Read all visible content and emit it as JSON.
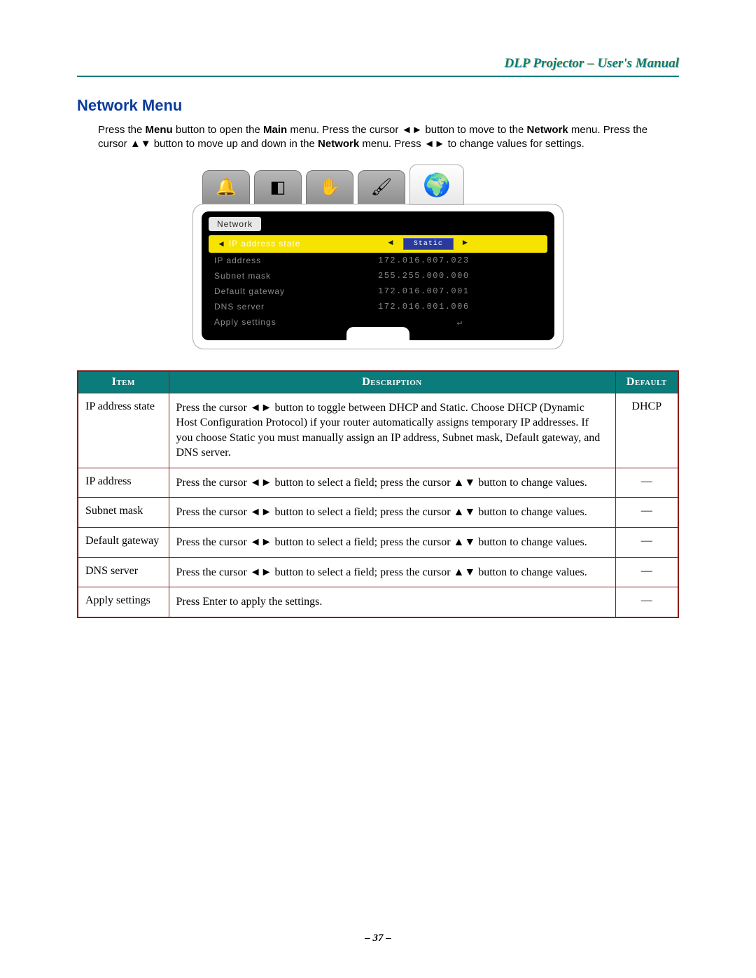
{
  "header": {
    "title": "DLP Projector – User's Manual"
  },
  "section": {
    "title": "Network Menu",
    "intro_p1a": "Press the ",
    "intro_menu": "Menu",
    "intro_p1b": " button to open the ",
    "intro_main": "Main",
    "intro_p1c": " menu. Press the cursor ◄► button to move to the ",
    "intro_network1": "Network",
    "intro_p2a": " menu. Press the cursor ▲▼ button to move up and down in the ",
    "intro_network2": "Network",
    "intro_p2b": " menu. Press ◄► to change values for settings."
  },
  "osd": {
    "panel_label": "Network",
    "tabs": {
      "t1_icon": "🔔",
      "t2_icon": "◧",
      "t3_icon": "✋",
      "t4_icon": "🖌",
      "t5_icon": "🌍"
    },
    "rows": [
      {
        "label": "IP address state",
        "value": "Static",
        "selected": true
      },
      {
        "label": "IP address",
        "value": "172.016.007.023",
        "selected": false
      },
      {
        "label": "Subnet mask",
        "value": "255.255.000.000",
        "selected": false
      },
      {
        "label": "Default gateway",
        "value": "172.016.007.001",
        "selected": false
      },
      {
        "label": "DNS server",
        "value": "172.016.001.006",
        "selected": false
      },
      {
        "label": "Apply settings",
        "value": "↵",
        "selected": false
      }
    ]
  },
  "table": {
    "headers": {
      "item": "Item",
      "desc": "Description",
      "def": "Default"
    },
    "rows": [
      {
        "item": "IP address state",
        "desc": "Press the cursor ◄► button to toggle between DHCP and Static. Choose DHCP (Dynamic Host Configuration Protocol) if your router automatically assigns temporary IP addresses.\nIf you choose Static you must manually assign an IP address, Subnet mask, Default gateway, and DNS server.",
        "def": "DHCP"
      },
      {
        "item": "IP address",
        "desc": "Press the cursor ◄► button to select a field; press the cursor ▲▼ button to change values.",
        "def": "—"
      },
      {
        "item": "Subnet mask",
        "desc": "Press the cursor ◄► button to select a field; press the cursor ▲▼ button to change values.",
        "def": "—"
      },
      {
        "item": "Default gateway",
        "desc": "Press the cursor ◄► button to select a field; press the cursor ▲▼ button to change values.",
        "def": "—"
      },
      {
        "item": "DNS server",
        "desc": "Press the cursor ◄► button to select a field; press the cursor ▲▼ button to change values.",
        "def": "—"
      },
      {
        "item": "Apply settings",
        "desc": "Press Enter to apply the settings.",
        "def": "—"
      }
    ]
  },
  "page_number": "– 37 –",
  "colors": {
    "teal": "#0b7c7c",
    "maroon": "#8b1a1a",
    "blue_heading": "#0b3c9c",
    "osd_yellow": "#f6e300",
    "osd_bg": "#000000",
    "osd_grey_text": "#8a8a8a"
  }
}
